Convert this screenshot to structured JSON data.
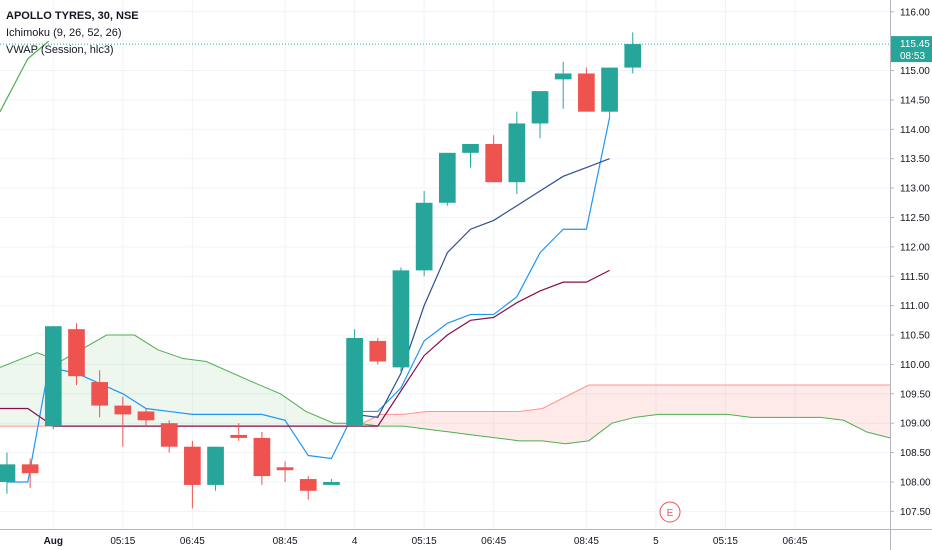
{
  "legend": {
    "symbol": "APOLLO TYRES, 30, NSE",
    "ichimoku": "Ichimoku (9, 26, 52, 26)",
    "vwap": "VWAP (Session, hlc3)"
  },
  "price_tag": {
    "price": "115.45",
    "countdown": "08:53"
  },
  "earnings_marker": "E",
  "colors": {
    "up": "#26a69a",
    "down": "#ef5350",
    "tenkan": "#2196f3",
    "kijun": "#880e4f",
    "span_a": "#4caf50",
    "span_b": "#ff5252",
    "vwap": "#2f4f8f",
    "price_line": "#26a69a"
  },
  "chart_data": {
    "type": "candlestick",
    "symbol": "APOLLO TYRES",
    "interval": "30",
    "exchange": "NSE",
    "y_ticks": [
      107.5,
      108.0,
      108.5,
      109.0,
      109.5,
      110.0,
      110.5,
      111.0,
      111.5,
      112.0,
      112.5,
      113.0,
      113.5,
      114.0,
      114.5,
      115.0,
      115.5,
      116.0
    ],
    "y_tick_labels": [
      "107.50",
      "108.00",
      "108.50",
      "109.00",
      "109.50",
      "110.00",
      "110.50",
      "111.00",
      "111.50",
      "112.00",
      "112.50",
      "113.00",
      "113.50",
      "114.00",
      "114.50",
      "115.00",
      "115.50",
      "116.00"
    ],
    "ylim": [
      107.2,
      116.2
    ],
    "x_slot_range": [
      -0.3,
      38.1
    ],
    "x_tick_labels": [
      {
        "slot": 2,
        "label": "Aug",
        "bold": true
      },
      {
        "slot": 5,
        "label": "05:15"
      },
      {
        "slot": 8,
        "label": "06:45"
      },
      {
        "slot": 12,
        "label": "08:45"
      },
      {
        "slot": 15,
        "label": "4"
      },
      {
        "slot": 18,
        "label": "05:15"
      },
      {
        "slot": 21,
        "label": "06:45"
      },
      {
        "slot": 25,
        "label": "08:45"
      },
      {
        "slot": 28,
        "label": "5"
      },
      {
        "slot": 31,
        "label": "05:15"
      },
      {
        "slot": 34,
        "label": "06:45"
      }
    ],
    "candles": [
      {
        "o": 108.0,
        "h": 108.5,
        "l": 107.8,
        "c": 108.3
      },
      {
        "o": 108.3,
        "h": 108.4,
        "l": 107.9,
        "c": 108.15
      },
      {
        "o": 108.95,
        "h": 110.65,
        "l": 108.9,
        "c": 110.65
      },
      {
        "o": 110.6,
        "h": 110.7,
        "l": 109.65,
        "c": 109.8
      },
      {
        "o": 109.7,
        "h": 109.9,
        "l": 109.1,
        "c": 109.3
      },
      {
        "o": 109.3,
        "h": 109.45,
        "l": 108.6,
        "c": 109.15
      },
      {
        "o": 109.2,
        "h": 109.25,
        "l": 108.95,
        "c": 109.05
      },
      {
        "o": 109.0,
        "h": 109.05,
        "l": 108.5,
        "c": 108.6
      },
      {
        "o": 108.6,
        "h": 108.7,
        "l": 107.55,
        "c": 107.95
      },
      {
        "o": 107.95,
        "h": 108.6,
        "l": 107.85,
        "c": 108.6
      },
      {
        "o": 108.8,
        "h": 109.0,
        "l": 108.7,
        "c": 108.75
      },
      {
        "o": 108.75,
        "h": 108.85,
        "l": 107.95,
        "c": 108.1
      },
      {
        "o": 108.25,
        "h": 108.35,
        "l": 108.0,
        "c": 108.2
      },
      {
        "o": 108.05,
        "h": 108.1,
        "l": 107.7,
        "c": 107.85
      },
      {
        "o": 107.95,
        "h": 108.05,
        "l": 107.95,
        "c": 108.0
      },
      {
        "o": 108.95,
        "h": 110.6,
        "l": 108.95,
        "c": 110.45
      },
      {
        "o": 110.4,
        "h": 110.45,
        "l": 110.0,
        "c": 110.05
      },
      {
        "o": 109.95,
        "h": 111.65,
        "l": 109.85,
        "c": 111.6
      },
      {
        "o": 111.6,
        "h": 112.95,
        "l": 111.5,
        "c": 112.75
      },
      {
        "o": 112.75,
        "h": 113.6,
        "l": 112.7,
        "c": 113.6
      },
      {
        "o": 113.6,
        "h": 113.75,
        "l": 113.35,
        "c": 113.75
      },
      {
        "o": 113.75,
        "h": 113.9,
        "l": 113.1,
        "c": 113.1
      },
      {
        "o": 113.1,
        "h": 114.3,
        "l": 112.9,
        "c": 114.1
      },
      {
        "o": 114.1,
        "h": 114.65,
        "l": 113.85,
        "c": 114.65
      },
      {
        "o": 114.85,
        "h": 115.15,
        "l": 114.35,
        "c": 114.95
      },
      {
        "o": 114.95,
        "h": 115.05,
        "l": 114.35,
        "c": 114.3
      },
      {
        "o": 114.3,
        "h": 115.05,
        "l": 114.2,
        "c": 115.05
      },
      {
        "o": 115.05,
        "h": 115.65,
        "l": 114.95,
        "c": 115.45
      }
    ],
    "series": [
      {
        "name": "VWAP",
        "points": [
          [
            -0.3,
            114.3
          ],
          [
            0.9,
            115.2
          ],
          [
            1.8,
            115.5
          ]
        ]
      },
      {
        "name": "Tenkan",
        "points": [
          [
            0,
            108.0
          ],
          [
            0.9,
            108.0
          ],
          [
            1.8,
            109.95
          ],
          [
            3,
            109.85
          ],
          [
            5,
            109.5
          ],
          [
            6,
            109.25
          ],
          [
            7,
            109.2
          ],
          [
            8,
            109.15
          ],
          [
            9,
            109.15
          ],
          [
            10,
            109.15
          ],
          [
            11,
            109.15
          ],
          [
            12,
            109.05
          ],
          [
            13,
            108.45
          ],
          [
            14,
            108.4
          ],
          [
            15,
            109.2
          ],
          [
            16,
            109.2
          ],
          [
            17,
            109.6
          ],
          [
            18,
            110.4
          ],
          [
            19,
            110.7
          ],
          [
            20,
            110.85
          ],
          [
            21,
            110.85
          ],
          [
            22,
            111.15
          ],
          [
            23,
            111.9
          ],
          [
            24,
            112.3
          ],
          [
            25,
            112.3
          ],
          [
            26,
            114.2
          ]
        ]
      },
      {
        "name": "Kijun",
        "points": [
          [
            -0.3,
            109.25
          ],
          [
            0.9,
            109.25
          ],
          [
            2,
            108.95
          ],
          [
            3,
            108.95
          ],
          [
            15,
            108.95
          ],
          [
            16,
            108.95
          ],
          [
            17,
            109.55
          ],
          [
            18,
            110.15
          ],
          [
            19,
            110.5
          ],
          [
            20,
            110.75
          ],
          [
            21,
            110.8
          ],
          [
            22,
            111.05
          ],
          [
            23,
            111.25
          ],
          [
            24,
            111.4
          ],
          [
            25,
            111.4
          ],
          [
            26,
            111.6
          ]
        ]
      },
      {
        "name": "VWAP Session",
        "points": [
          [
            15,
            109.15
          ],
          [
            16,
            109.1
          ],
          [
            17,
            109.85
          ],
          [
            18,
            111.0
          ],
          [
            19,
            111.9
          ],
          [
            20,
            112.3
          ],
          [
            21,
            112.45
          ],
          [
            22,
            112.7
          ],
          [
            23,
            112.95
          ],
          [
            24,
            113.2
          ],
          [
            25,
            113.35
          ],
          [
            26,
            113.5
          ]
        ]
      }
    ],
    "cloud": {
      "x": [
        -0.3,
        1.3,
        2.3,
        4.3,
        5.5,
        6.5,
        7.6,
        8.6,
        10.6,
        11.8,
        12.9,
        14.1,
        15.1,
        16.1,
        17.1,
        18.1,
        19.1,
        20.1,
        21.1,
        22.1,
        23.1,
        24.1,
        25.1,
        26.1,
        27.1,
        28.1,
        29.1,
        30.1,
        31.1,
        32.1,
        33.1,
        34.1,
        35.1,
        36.1,
        37.1,
        38.1
      ],
      "span_a": [
        109.95,
        110.2,
        110.05,
        110.5,
        110.5,
        110.25,
        110.1,
        110.05,
        109.7,
        109.5,
        109.2,
        109.0,
        109.0,
        108.95,
        108.95,
        108.9,
        108.85,
        108.8,
        108.75,
        108.7,
        108.7,
        108.65,
        108.7,
        109.0,
        109.1,
        109.15,
        109.15,
        109.15,
        109.15,
        109.1,
        109.1,
        109.1,
        109.1,
        109.05,
        108.85,
        108.75
      ],
      "span_b": [
        108.95,
        108.95,
        108.95,
        108.95,
        108.95,
        108.95,
        108.95,
        108.95,
        108.95,
        108.95,
        108.95,
        108.95,
        108.95,
        109.15,
        109.15,
        109.2,
        109.2,
        109.2,
        109.2,
        109.2,
        109.25,
        109.45,
        109.65,
        109.65,
        109.65,
        109.65,
        109.65,
        109.65,
        109.65,
        109.65,
        109.65,
        109.65,
        109.65,
        109.65,
        109.65,
        109.65
      ]
    },
    "last_price": 115.45,
    "grid": true,
    "legend_position": "top-left"
  }
}
